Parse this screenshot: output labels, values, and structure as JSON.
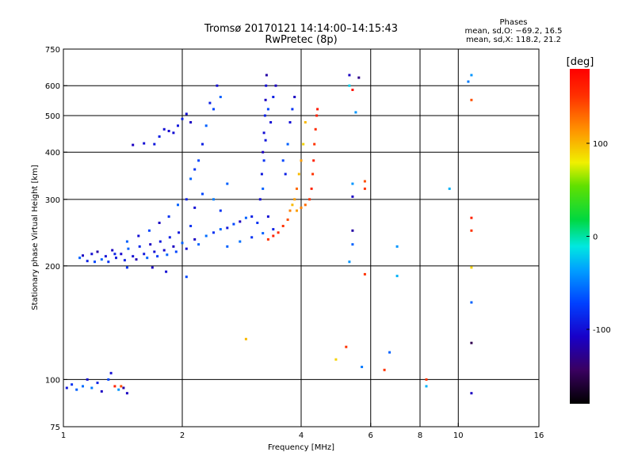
{
  "chart_data": {
    "type": "scatter",
    "title": "Tromsø 20170121 14:14:00–14:15:43",
    "subtitle": "RwPretec (8p)",
    "xlabel": "Frequency [MHz]",
    "ylabel": "Stationary phase Virtual Height [km]",
    "x_scale": "log",
    "y_scale": "log",
    "xlim": [
      1,
      16
    ],
    "ylim": [
      75,
      750
    ],
    "x_ticks": [
      1,
      2,
      4,
      6,
      8,
      10,
      16
    ],
    "y_ticks": [
      75,
      100,
      200,
      300,
      400,
      500,
      600,
      750
    ],
    "grid": true,
    "stats": {
      "heading": "Phases",
      "line_o": "mean, sd,O: −69.2, 16.5",
      "line_x": "mean, sd,X: 118.2, 21.2"
    },
    "colorbar": {
      "label": "[deg]",
      "ticks": [
        100,
        0,
        -100
      ],
      "range": [
        -180,
        180
      ]
    },
    "series": [
      {
        "points": [
          [
            1.02,
            95,
            -95
          ],
          [
            1.05,
            97,
            -80
          ],
          [
            1.08,
            94,
            -60
          ],
          [
            1.12,
            96,
            -55
          ],
          [
            1.15,
            100,
            -100
          ],
          [
            1.18,
            95,
            -50
          ],
          [
            1.22,
            98,
            -90
          ],
          [
            1.25,
            93,
            -110
          ],
          [
            1.3,
            100,
            -70
          ],
          [
            1.32,
            104,
            -100
          ],
          [
            1.35,
            96,
            160
          ],
          [
            1.38,
            94,
            -40
          ],
          [
            1.42,
            95,
            -120
          ],
          [
            1.45,
            92,
            -110
          ],
          [
            1.4,
            96,
            140
          ],
          [
            1.1,
            210,
            -60
          ],
          [
            1.12,
            213,
            -110
          ],
          [
            1.15,
            206,
            -90
          ],
          [
            1.18,
            215,
            -100
          ],
          [
            1.2,
            205,
            -70
          ],
          [
            1.22,
            218,
            -120
          ],
          [
            1.25,
            208,
            -60
          ],
          [
            1.28,
            212,
            -100
          ],
          [
            1.3,
            205,
            -80
          ],
          [
            1.33,
            220,
            -110
          ],
          [
            1.36,
            210,
            -95
          ],
          [
            1.4,
            215,
            -105
          ],
          [
            1.43,
            207,
            -90
          ],
          [
            1.46,
            222,
            -60
          ],
          [
            1.5,
            212,
            -100
          ],
          [
            1.53,
            208,
            -115
          ],
          [
            1.56,
            225,
            -85
          ],
          [
            1.6,
            215,
            -95
          ],
          [
            1.63,
            210,
            -60
          ],
          [
            1.66,
            228,
            -110
          ],
          [
            1.7,
            218,
            -100
          ],
          [
            1.73,
            212,
            -75
          ],
          [
            1.76,
            232,
            -95
          ],
          [
            1.8,
            220,
            -105
          ],
          [
            1.83,
            214,
            -60
          ],
          [
            1.86,
            238,
            -90
          ],
          [
            1.9,
            225,
            -110
          ],
          [
            1.93,
            218,
            -70
          ],
          [
            1.96,
            245,
            -95
          ],
          [
            2.0,
            230,
            -60
          ],
          [
            2.05,
            222,
            -100
          ],
          [
            2.1,
            255,
            -80
          ],
          [
            2.15,
            235,
            -110
          ],
          [
            2.2,
            228,
            -60
          ],
          [
            1.35,
            215,
            -90
          ],
          [
            1.45,
            232,
            -60
          ],
          [
            1.55,
            240,
            -100
          ],
          [
            1.65,
            248,
            -70
          ],
          [
            1.75,
            260,
            -110
          ],
          [
            1.85,
            270,
            -80
          ],
          [
            1.95,
            290,
            -60
          ],
          [
            2.05,
            300,
            -90
          ],
          [
            2.15,
            285,
            -100
          ],
          [
            2.25,
            310,
            -70
          ],
          [
            1.5,
            418,
            -110
          ],
          [
            1.6,
            422,
            -100
          ],
          [
            1.7,
            420,
            -95
          ],
          [
            1.75,
            440,
            -90
          ],
          [
            1.8,
            460,
            -100
          ],
          [
            1.85,
            455,
            -105
          ],
          [
            1.9,
            450,
            -100
          ],
          [
            1.95,
            470,
            -95
          ],
          [
            2.0,
            490,
            -90
          ],
          [
            2.05,
            505,
            -100
          ],
          [
            2.1,
            480,
            -110
          ],
          [
            2.1,
            340,
            -60
          ],
          [
            2.15,
            360,
            -80
          ],
          [
            2.2,
            380,
            -70
          ],
          [
            2.25,
            420,
            -90
          ],
          [
            2.3,
            470,
            -60
          ],
          [
            2.35,
            540,
            -90
          ],
          [
            2.4,
            520,
            -70
          ],
          [
            2.45,
            600,
            -100
          ],
          [
            2.5,
            560,
            -60
          ],
          [
            2.4,
            300,
            -50
          ],
          [
            2.5,
            280,
            -80
          ],
          [
            2.6,
            330,
            -60
          ],
          [
            2.3,
            240,
            -55
          ],
          [
            2.4,
            245,
            -80
          ],
          [
            2.5,
            250,
            -60
          ],
          [
            2.6,
            252,
            -95
          ],
          [
            2.7,
            258,
            -70
          ],
          [
            2.8,
            262,
            -110
          ],
          [
            2.9,
            268,
            -60
          ],
          [
            3.0,
            270,
            -90
          ],
          [
            2.6,
            225,
            -60
          ],
          [
            2.8,
            232,
            -55
          ],
          [
            3.0,
            238,
            -80
          ],
          [
            3.2,
            244,
            -60
          ],
          [
            3.4,
            250,
            -90
          ],
          [
            3.15,
            300,
            -100
          ],
          [
            3.18,
            350,
            -95
          ],
          [
            3.2,
            400,
            -110
          ],
          [
            3.22,
            450,
            -100
          ],
          [
            3.24,
            500,
            -90
          ],
          [
            3.25,
            550,
            -110
          ],
          [
            3.26,
            600,
            -100
          ],
          [
            3.27,
            640,
            -120
          ],
          [
            3.2,
            320,
            -60
          ],
          [
            3.22,
            380,
            -80
          ],
          [
            3.25,
            430,
            -95
          ],
          [
            3.3,
            520,
            -70
          ],
          [
            3.35,
            480,
            -100
          ],
          [
            3.4,
            560,
            -90
          ],
          [
            3.45,
            600,
            -110
          ],
          [
            3.3,
            270,
            -100
          ],
          [
            3.1,
            260,
            -80
          ],
          [
            3.6,
            380,
            -70
          ],
          [
            3.65,
            350,
            -90
          ],
          [
            3.7,
            420,
            -60
          ],
          [
            3.75,
            480,
            -100
          ],
          [
            3.8,
            520,
            -80
          ],
          [
            3.85,
            560,
            -110
          ],
          [
            3.3,
            235,
            150
          ],
          [
            3.4,
            240,
            160
          ],
          [
            3.5,
            245,
            155
          ],
          [
            3.6,
            255,
            150
          ],
          [
            3.7,
            265,
            140
          ],
          [
            3.75,
            280,
            120
          ],
          [
            3.8,
            290,
            100
          ],
          [
            3.85,
            300,
            110
          ],
          [
            3.9,
            320,
            130
          ],
          [
            3.95,
            350,
            100
          ],
          [
            4.0,
            380,
            110
          ],
          [
            4.05,
            420,
            90
          ],
          [
            4.1,
            480,
            100
          ],
          [
            4.2,
            300,
            150
          ],
          [
            4.25,
            320,
            160
          ],
          [
            4.28,
            350,
            150
          ],
          [
            4.3,
            380,
            160
          ],
          [
            4.32,
            420,
            150
          ],
          [
            4.35,
            460,
            155
          ],
          [
            4.38,
            500,
            160
          ],
          [
            4.4,
            520,
            165
          ],
          [
            4.1,
            290,
            130
          ],
          [
            4.0,
            285,
            120
          ],
          [
            3.9,
            280,
            110
          ],
          [
            5.3,
            640,
            -110
          ],
          [
            5.6,
            630,
            -130
          ],
          [
            5.3,
            600,
            -20
          ],
          [
            5.4,
            585,
            170
          ],
          [
            5.5,
            510,
            -40
          ],
          [
            5.4,
            330,
            -40
          ],
          [
            5.4,
            305,
            -110
          ],
          [
            5.4,
            248,
            -120
          ],
          [
            5.4,
            228,
            -60
          ],
          [
            5.3,
            205,
            -40
          ],
          [
            5.8,
            335,
            140
          ],
          [
            5.8,
            320,
            150
          ],
          [
            5.8,
            190,
            150
          ],
          [
            7.0,
            225,
            -40
          ],
          [
            7.0,
            188,
            -30
          ],
          [
            6.7,
            118,
            -60
          ],
          [
            6.5,
            106,
            150
          ],
          [
            5.2,
            122,
            150
          ],
          [
            5.7,
            108,
            -50
          ],
          [
            4.9,
            113,
            90
          ],
          [
            2.9,
            128,
            100
          ],
          [
            8.3,
            100,
            150
          ],
          [
            8.3,
            96,
            -30
          ],
          [
            9.5,
            320,
            -30
          ],
          [
            10.8,
            640,
            -40
          ],
          [
            10.8,
            550,
            140
          ],
          [
            10.8,
            268,
            160
          ],
          [
            10.8,
            248,
            150
          ],
          [
            10.8,
            198,
            90
          ],
          [
            10.8,
            160,
            -60
          ],
          [
            10.8,
            125,
            -150
          ],
          [
            10.8,
            92,
            -110
          ],
          [
            10.6,
            615,
            -50
          ],
          [
            1.45,
            198,
            -80
          ],
          [
            1.68,
            198,
            -110
          ],
          [
            2.05,
            187,
            -70
          ],
          [
            1.82,
            193,
            -100
          ]
        ]
      }
    ]
  }
}
